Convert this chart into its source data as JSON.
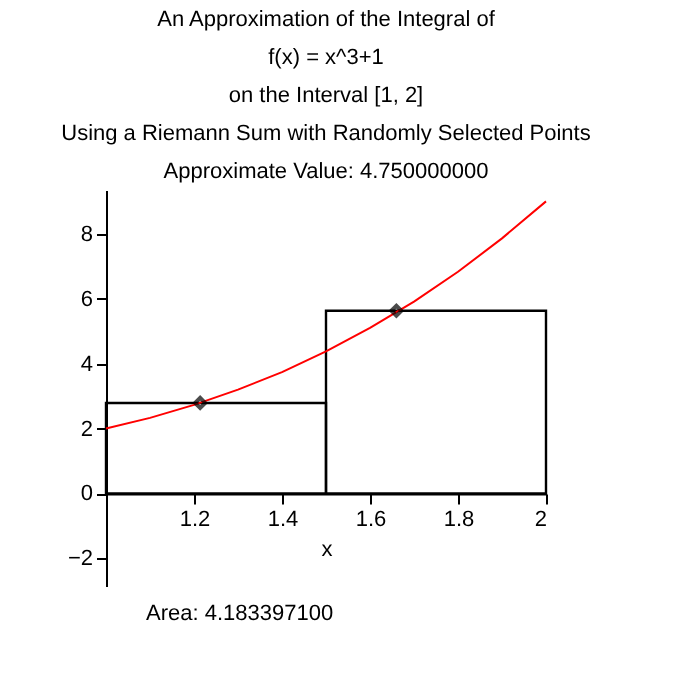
{
  "chart_data": {
    "type": "histogram",
    "title": "An Approximation of the Integral of\nf(x) = x^3+1\non the Interval [1, 2]\nUsing a Riemann Sum with Randomly Selected Points\nApproximate Value: 4.750000000",
    "xlabel": "x",
    "annotations": [
      "Area: 4.183397100"
    ],
    "xlim": [
      1,
      2
    ],
    "ylim": [
      -2.85,
      9.35
    ],
    "xticks": [
      1.2,
      1.4,
      1.6,
      1.8,
      2
    ],
    "yticks": [
      -2,
      0,
      2,
      4,
      6,
      8
    ],
    "grid": false,
    "series": [
      {
        "bins": [
          1,
          1.5,
          2
        ],
        "values": [
          2.79,
          5.63
        ],
        "color": "#000000"
      },
      {
        "type": "line",
        "x": [
          1,
          1.1,
          1.2,
          1.3,
          1.4,
          1.5,
          1.6,
          1.7,
          1.8,
          1.9,
          2
        ],
        "values": [
          2,
          2.33,
          2.73,
          3.2,
          3.74,
          4.38,
          5.1,
          5.91,
          6.83,
          7.86,
          9
        ],
        "color": "#ff0000"
      },
      {
        "type": "scatter",
        "x": [
          1.214,
          1.66
        ],
        "values": [
          2.79,
          5.63
        ],
        "color": "#000000",
        "marker": "diamond"
      }
    ]
  }
}
